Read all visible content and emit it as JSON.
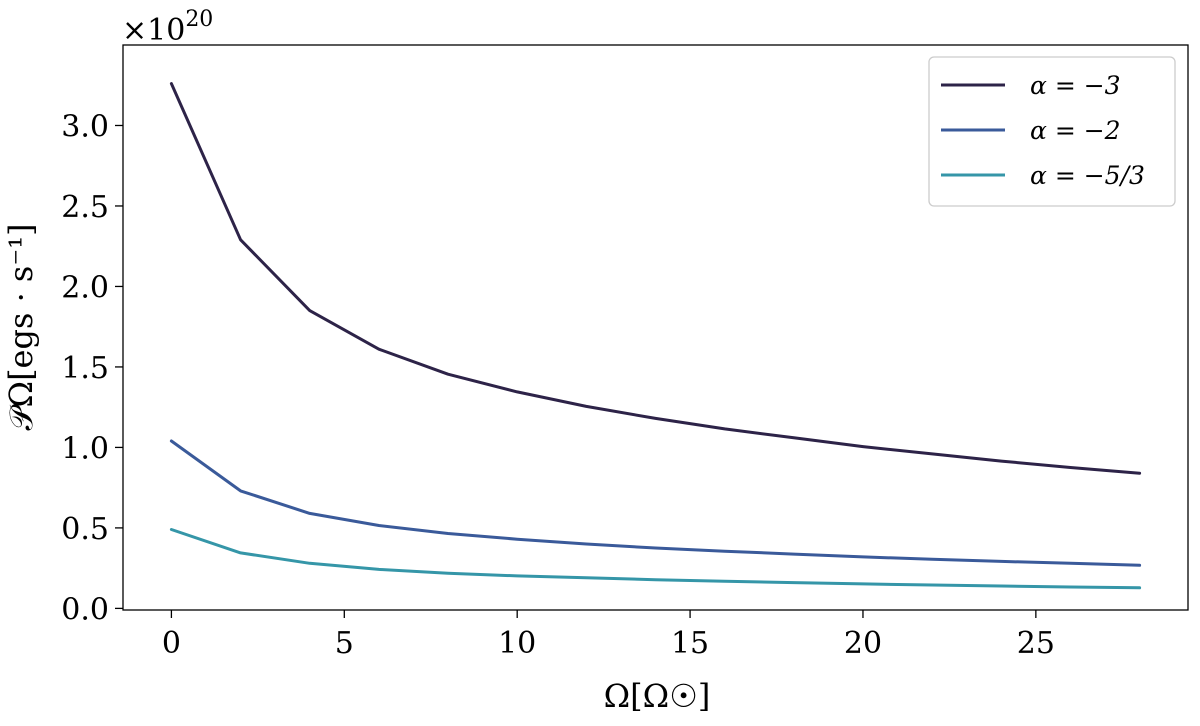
{
  "chart_data": {
    "type": "line",
    "xlabel": "Ω[Ω☉]",
    "ylabel": "𝒫Ω[egs · s⁻¹]",
    "offset_text": {
      "base": "×10",
      "exponent": "20"
    },
    "xlim": [
      -1.4,
      29.4
    ],
    "ylim": [
      -0.01,
      3.5
    ],
    "xticks": [
      0,
      5,
      10,
      15,
      20,
      25
    ],
    "xtick_labels": [
      "0",
      "5",
      "10",
      "15",
      "20",
      "25"
    ],
    "yticks": [
      0.0,
      0.5,
      1.0,
      1.5,
      2.0,
      2.5,
      3.0
    ],
    "ytick_labels": [
      "0.0",
      "0.5",
      "1.0",
      "1.5",
      "2.0",
      "2.5",
      "3.0"
    ],
    "x": [
      0,
      2,
      4,
      6,
      8,
      10,
      12,
      14,
      16,
      18,
      20,
      22,
      24,
      26,
      28
    ],
    "legend_position": "top-right",
    "grid": false,
    "series": [
      {
        "name": "α = −3",
        "color": "#2d2348",
        "values": [
          3.26,
          2.29,
          1.85,
          1.61,
          1.455,
          1.345,
          1.255,
          1.18,
          1.115,
          1.06,
          1.005,
          0.96,
          0.915,
          0.875,
          0.84
        ]
      },
      {
        "name": "α = −2",
        "color": "#3a5a9a",
        "values": [
          1.04,
          0.73,
          0.59,
          0.515,
          0.465,
          0.43,
          0.4,
          0.375,
          0.355,
          0.337,
          0.32,
          0.305,
          0.292,
          0.28,
          0.268
        ]
      },
      {
        "name": "α = −5/3",
        "color": "#3596a8",
        "values": [
          0.49,
          0.345,
          0.28,
          0.242,
          0.218,
          0.202,
          0.19,
          0.178,
          0.168,
          0.16,
          0.152,
          0.145,
          0.139,
          0.133,
          0.128
        ]
      }
    ]
  }
}
